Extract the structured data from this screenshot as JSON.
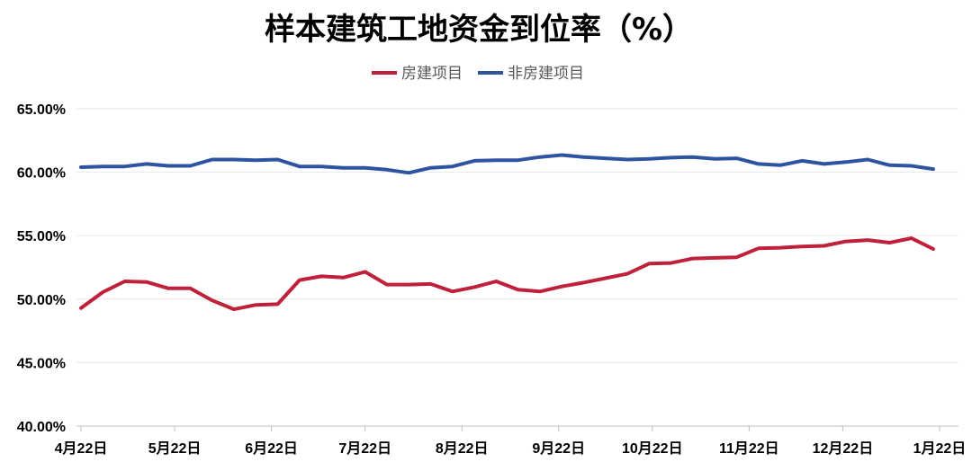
{
  "chart_data": {
    "type": "line",
    "title": "样本建筑工地资金到位率（%）",
    "xlabel": "",
    "ylabel": "",
    "ylim": [
      40,
      65
    ],
    "yticks": [
      "40.00%",
      "45.00%",
      "50.00%",
      "55.00%",
      "60.00%",
      "65.00%"
    ],
    "grid": true,
    "legend": "top",
    "x_tick_labels": [
      "4月22日",
      "5月22日",
      "6月22日",
      "7月22日",
      "8月22日",
      "9月22日",
      "10月22日",
      "11月22日",
      "12月22日",
      "1月22日"
    ],
    "x_tick_dates": [
      "2025-04-22",
      "2025-05-22",
      "2025-06-22",
      "2025-07-22",
      "2025-08-22",
      "2025-09-22",
      "2025-10-22",
      "2025-11-22",
      "2025-12-22",
      "2026-01-22"
    ],
    "x": [
      "2025-04-22",
      "2025-04-29",
      "2025-05-06",
      "2025-05-13",
      "2025-05-20",
      "2025-05-27",
      "2025-06-03",
      "2025-06-10",
      "2025-06-17",
      "2025-06-24",
      "2025-07-01",
      "2025-07-08",
      "2025-07-15",
      "2025-07-22",
      "2025-07-29",
      "2025-08-05",
      "2025-08-12",
      "2025-08-19",
      "2025-08-26",
      "2025-09-02",
      "2025-09-09",
      "2025-09-16",
      "2025-09-23",
      "2025-09-30",
      "2025-10-07",
      "2025-10-14",
      "2025-10-21",
      "2025-10-28",
      "2025-11-04",
      "2025-11-11",
      "2025-11-18",
      "2025-11-25",
      "2025-12-02",
      "2025-12-09",
      "2025-12-16",
      "2025-12-23",
      "2025-12-30",
      "2026-01-06",
      "2026-01-13",
      "2026-01-20"
    ],
    "series": [
      {
        "name": "房建项目",
        "color": "#C0213A",
        "values": [
          49.3,
          50.55,
          51.4,
          51.35,
          50.85,
          50.85,
          49.9,
          49.2,
          49.55,
          49.6,
          51.5,
          51.8,
          51.7,
          52.15,
          51.15,
          51.15,
          51.2,
          50.6,
          50.95,
          51.4,
          50.75,
          50.6,
          51.0,
          51.3,
          51.65,
          52.0,
          52.8,
          52.85,
          53.2,
          53.25,
          53.3,
          54.0,
          54.05,
          54.15,
          54.2,
          54.55,
          54.65,
          54.45,
          54.8,
          53.95
        ]
      },
      {
        "name": "非房建项目",
        "color": "#2E54A1",
        "values": [
          60.4,
          60.45,
          60.45,
          60.65,
          60.5,
          60.5,
          61.0,
          61.0,
          60.95,
          61.0,
          60.45,
          60.45,
          60.35,
          60.35,
          60.2,
          59.95,
          60.35,
          60.45,
          60.9,
          60.95,
          60.95,
          61.2,
          61.35,
          61.2,
          61.1,
          61.0,
          61.05,
          61.15,
          61.2,
          61.05,
          61.1,
          60.65,
          60.55,
          60.9,
          60.65,
          60.8,
          61.0,
          60.55,
          60.5,
          60.25
        ]
      }
    ]
  }
}
